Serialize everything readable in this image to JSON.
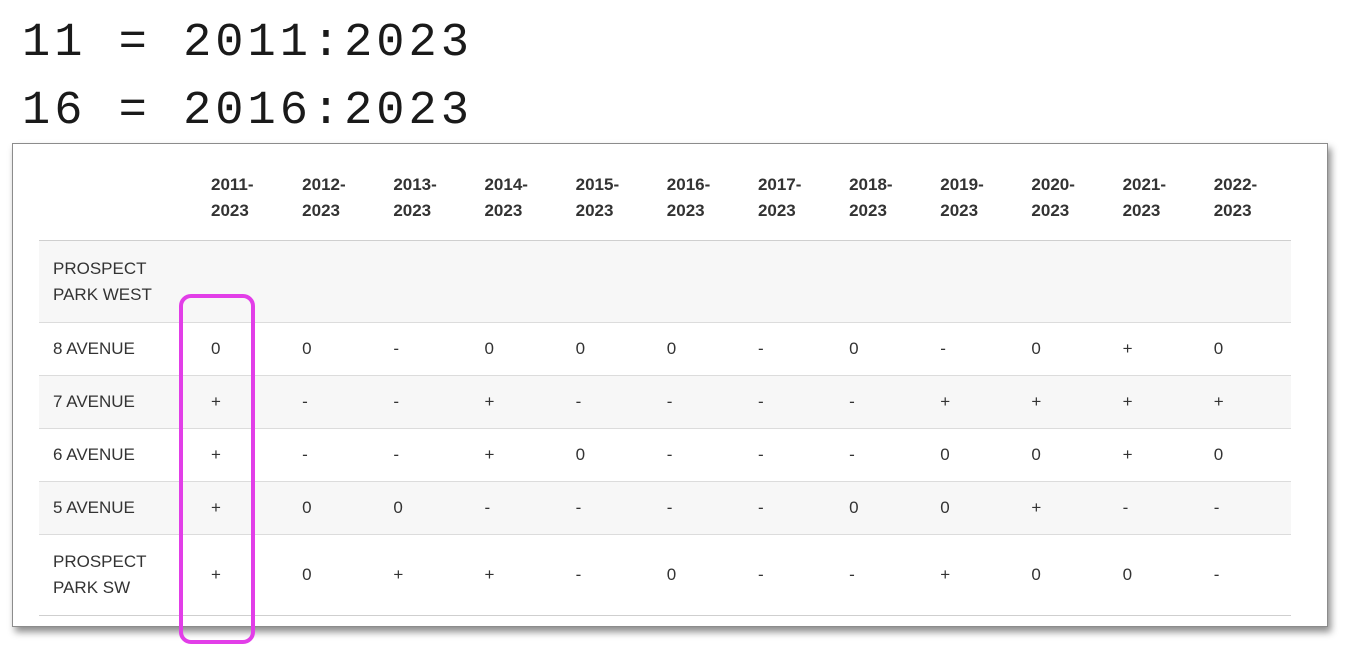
{
  "legend": [
    {
      "key": "11",
      "eq": "=",
      "range": "2011:2023"
    },
    {
      "key": "16",
      "eq": "=",
      "range": "2016:2023"
    }
  ],
  "table": {
    "columns": [
      [
        "2011-",
        "2023"
      ],
      [
        "2012-",
        "2023"
      ],
      [
        "2013-",
        "2023"
      ],
      [
        "2014-",
        "2023"
      ],
      [
        "2015-",
        "2023"
      ],
      [
        "2016-",
        "2023"
      ],
      [
        "2017-",
        "2023"
      ],
      [
        "2018-",
        "2023"
      ],
      [
        "2019-",
        "2023"
      ],
      [
        "2020-",
        "2023"
      ],
      [
        "2021-",
        "2023"
      ],
      [
        "2022-",
        "2023"
      ]
    ],
    "rows": [
      {
        "label": [
          "PROSPECT",
          "PARK WEST"
        ],
        "cells": [
          "",
          "",
          "",
          "",
          "",
          "",
          "",
          "",
          "",
          "",
          "",
          ""
        ]
      },
      {
        "label": [
          "8 AVENUE"
        ],
        "cells": [
          "0",
          "0",
          "-",
          "0",
          "0",
          "0",
          "-",
          "0",
          "-",
          "0",
          "+",
          "0"
        ]
      },
      {
        "label": [
          "7 AVENUE"
        ],
        "cells": [
          "+",
          "-",
          "-",
          "+",
          "-",
          "-",
          "-",
          "-",
          "+",
          "+",
          "+",
          "+"
        ]
      },
      {
        "label": [
          "6 AVENUE"
        ],
        "cells": [
          "+",
          "-",
          "-",
          "+",
          "0",
          "-",
          "-",
          "-",
          "0",
          "0",
          "+",
          "0"
        ]
      },
      {
        "label": [
          "5 AVENUE"
        ],
        "cells": [
          "+",
          "0",
          "0",
          "-",
          "-",
          "-",
          "-",
          "0",
          "0",
          "+",
          "-",
          "-"
        ]
      },
      {
        "label": [
          "PROSPECT",
          "PARK SW"
        ],
        "cells": [
          "+",
          "0",
          "+",
          "+",
          "-",
          "0",
          "-",
          "-",
          "+",
          "0",
          "0",
          "-"
        ]
      }
    ]
  },
  "highlight": {
    "column_index": 0,
    "color": "#e23ee8"
  }
}
